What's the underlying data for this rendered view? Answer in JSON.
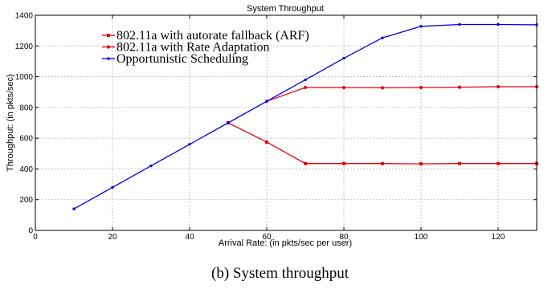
{
  "chart_data": {
    "type": "line",
    "title": "System Throughput",
    "xlabel": "Arrival Rate: (in pkts/sec per user)",
    "ylabel": "Throughput: (in pkts/sec)",
    "xlim": [
      0,
      130
    ],
    "ylim": [
      0,
      1400
    ],
    "xticks": [
      0,
      20,
      40,
      60,
      80,
      100,
      120
    ],
    "yticks": [
      0,
      200,
      400,
      600,
      800,
      1000,
      1200,
      1400
    ],
    "grid": true,
    "legend_position": "top-left",
    "series": [
      {
        "name": "802.11a with autorate fallback (ARF)",
        "color": "#e8000b",
        "marker": "square",
        "x": [
          50,
          60,
          70,
          80,
          90,
          100,
          110,
          120,
          130
        ],
        "y": [
          700,
          575,
          435,
          435,
          435,
          433,
          435,
          435,
          435
        ]
      },
      {
        "name": "802.11a with Rate Adaptation",
        "color": "#e8000b",
        "marker": "circle",
        "x": [
          60,
          70,
          80,
          90,
          100,
          110,
          120,
          130
        ],
        "y": [
          840,
          930,
          930,
          928,
          930,
          932,
          935,
          935
        ]
      },
      {
        "name": "Opportunistic Scheduling",
        "color": "#0000e6",
        "marker": "dot",
        "x": [
          10,
          20,
          30,
          40,
          50,
          60,
          70,
          80,
          90,
          100,
          110,
          120,
          130
        ],
        "y": [
          140,
          280,
          420,
          560,
          700,
          840,
          980,
          1120,
          1253,
          1328,
          1340,
          1340,
          1338
        ]
      }
    ]
  },
  "caption": "(b)  System throughput"
}
